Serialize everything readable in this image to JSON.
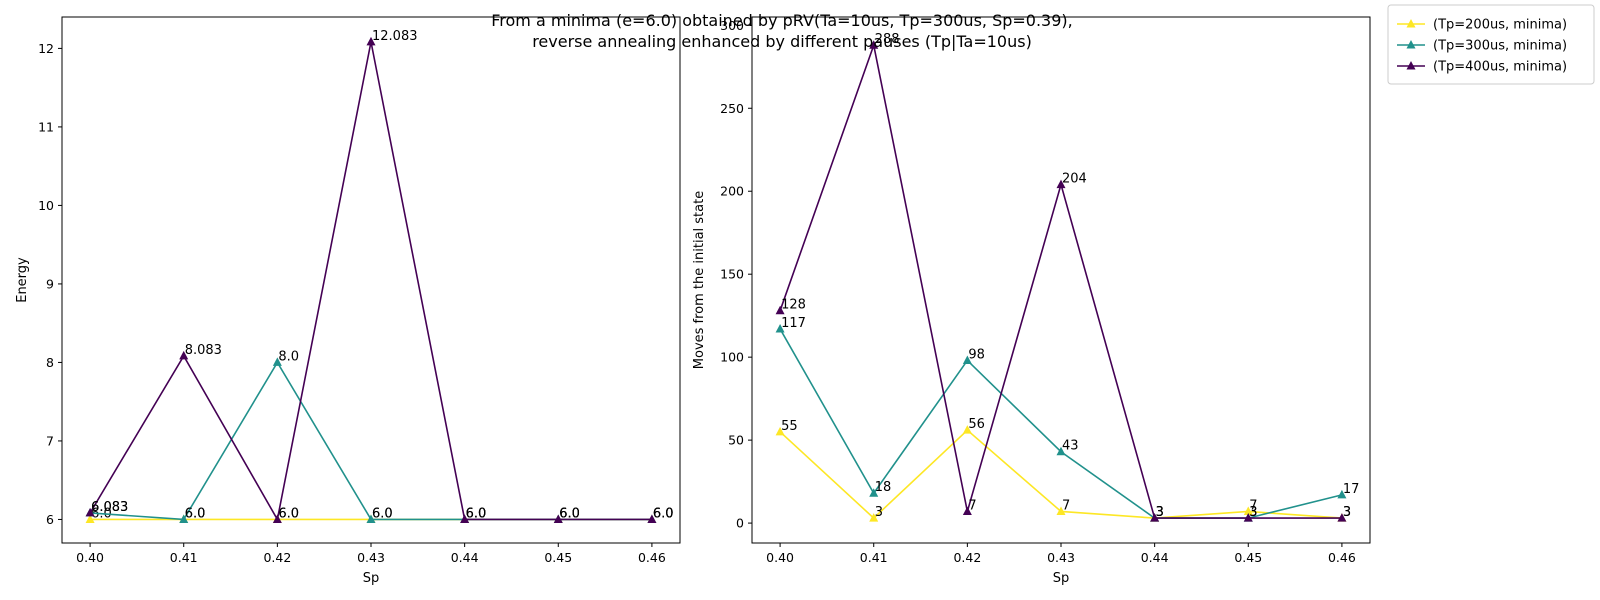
{
  "title": {
    "line1": "From a minima (e=6.0) obtained by pRV(Ta=10us, Tp=300us, Sp=0.39),",
    "line2": "reverse annealing enhanced by different pauses (Tp|Ta=10us)"
  },
  "colors": {
    "series": [
      "#fde725",
      "#21918c",
      "#440154"
    ]
  },
  "legend": {
    "placement": "outside-top-right",
    "entries": [
      "(Tp=200us, minima)",
      "(Tp=300us, minima)",
      "(Tp=400us, minima)"
    ]
  },
  "chart_data": [
    {
      "type": "line",
      "marker": "triangle-up",
      "xlabel": "Sp",
      "ylabel": "Energy",
      "x": [
        0.4,
        0.41,
        0.42,
        0.43,
        0.44,
        0.45,
        0.46
      ],
      "xticks": [
        "0.40",
        "0.41",
        "0.42",
        "0.43",
        "0.44",
        "0.45",
        "0.46"
      ],
      "xlim": [
        0.397,
        0.463
      ],
      "ylim": [
        5.7,
        12.4
      ],
      "yticks": [
        "6",
        "7",
        "8",
        "9",
        "10",
        "11",
        "12"
      ],
      "grid": false,
      "series": [
        {
          "name": "(Tp=200us, minima)",
          "values": [
            6.0,
            6.0,
            6.0,
            6.0,
            6.0,
            6.0,
            6.0
          ],
          "labels": [
            "6.0",
            "6.0",
            "6.0",
            "6.0",
            "6.0",
            "6.0",
            "6.0"
          ]
        },
        {
          "name": "(Tp=300us, minima)",
          "values": [
            6.083,
            6.0,
            8.0,
            6.0,
            6.0,
            6.0,
            6.0
          ],
          "labels": [
            "6.083",
            "6.0",
            "8.0",
            "6.0",
            "6.0",
            "6.0",
            "6.0"
          ]
        },
        {
          "name": "(Tp=400us, minima)",
          "values": [
            6.083,
            8.083,
            6.0,
            12.083,
            6.0,
            6.0,
            6.0
          ],
          "labels": [
            "6.083",
            "8.083",
            "6.0",
            "12.083",
            "6.0",
            "6.0",
            "6.0"
          ]
        }
      ]
    },
    {
      "type": "line",
      "marker": "triangle-up",
      "xlabel": "Sp",
      "ylabel": "Moves from the initial state",
      "x": [
        0.4,
        0.41,
        0.42,
        0.43,
        0.44,
        0.45,
        0.46
      ],
      "xticks": [
        "0.40",
        "0.41",
        "0.42",
        "0.43",
        "0.44",
        "0.45",
        "0.46"
      ],
      "xlim": [
        0.397,
        0.463
      ],
      "ylim": [
        -12,
        305
      ],
      "yticks": [
        "0",
        "50",
        "100",
        "150",
        "200",
        "250",
        "300"
      ],
      "grid": false,
      "series": [
        {
          "name": "(Tp=200us, minima)",
          "values": [
            55,
            3,
            56,
            7,
            3,
            7,
            3
          ],
          "labels": [
            "55",
            "3",
            "56",
            "7",
            "3",
            "7",
            "3"
          ]
        },
        {
          "name": "(Tp=300us, minima)",
          "values": [
            117,
            18,
            98,
            43,
            3,
            3,
            17
          ],
          "labels": [
            "117",
            "18",
            "98",
            "43",
            "3",
            "3",
            "17"
          ]
        },
        {
          "name": "(Tp=400us, minima)",
          "values": [
            128,
            288,
            7,
            204,
            3,
            3,
            3
          ],
          "labels": [
            "128",
            "288",
            "7",
            "204",
            "3",
            "3",
            "3"
          ]
        }
      ]
    }
  ]
}
